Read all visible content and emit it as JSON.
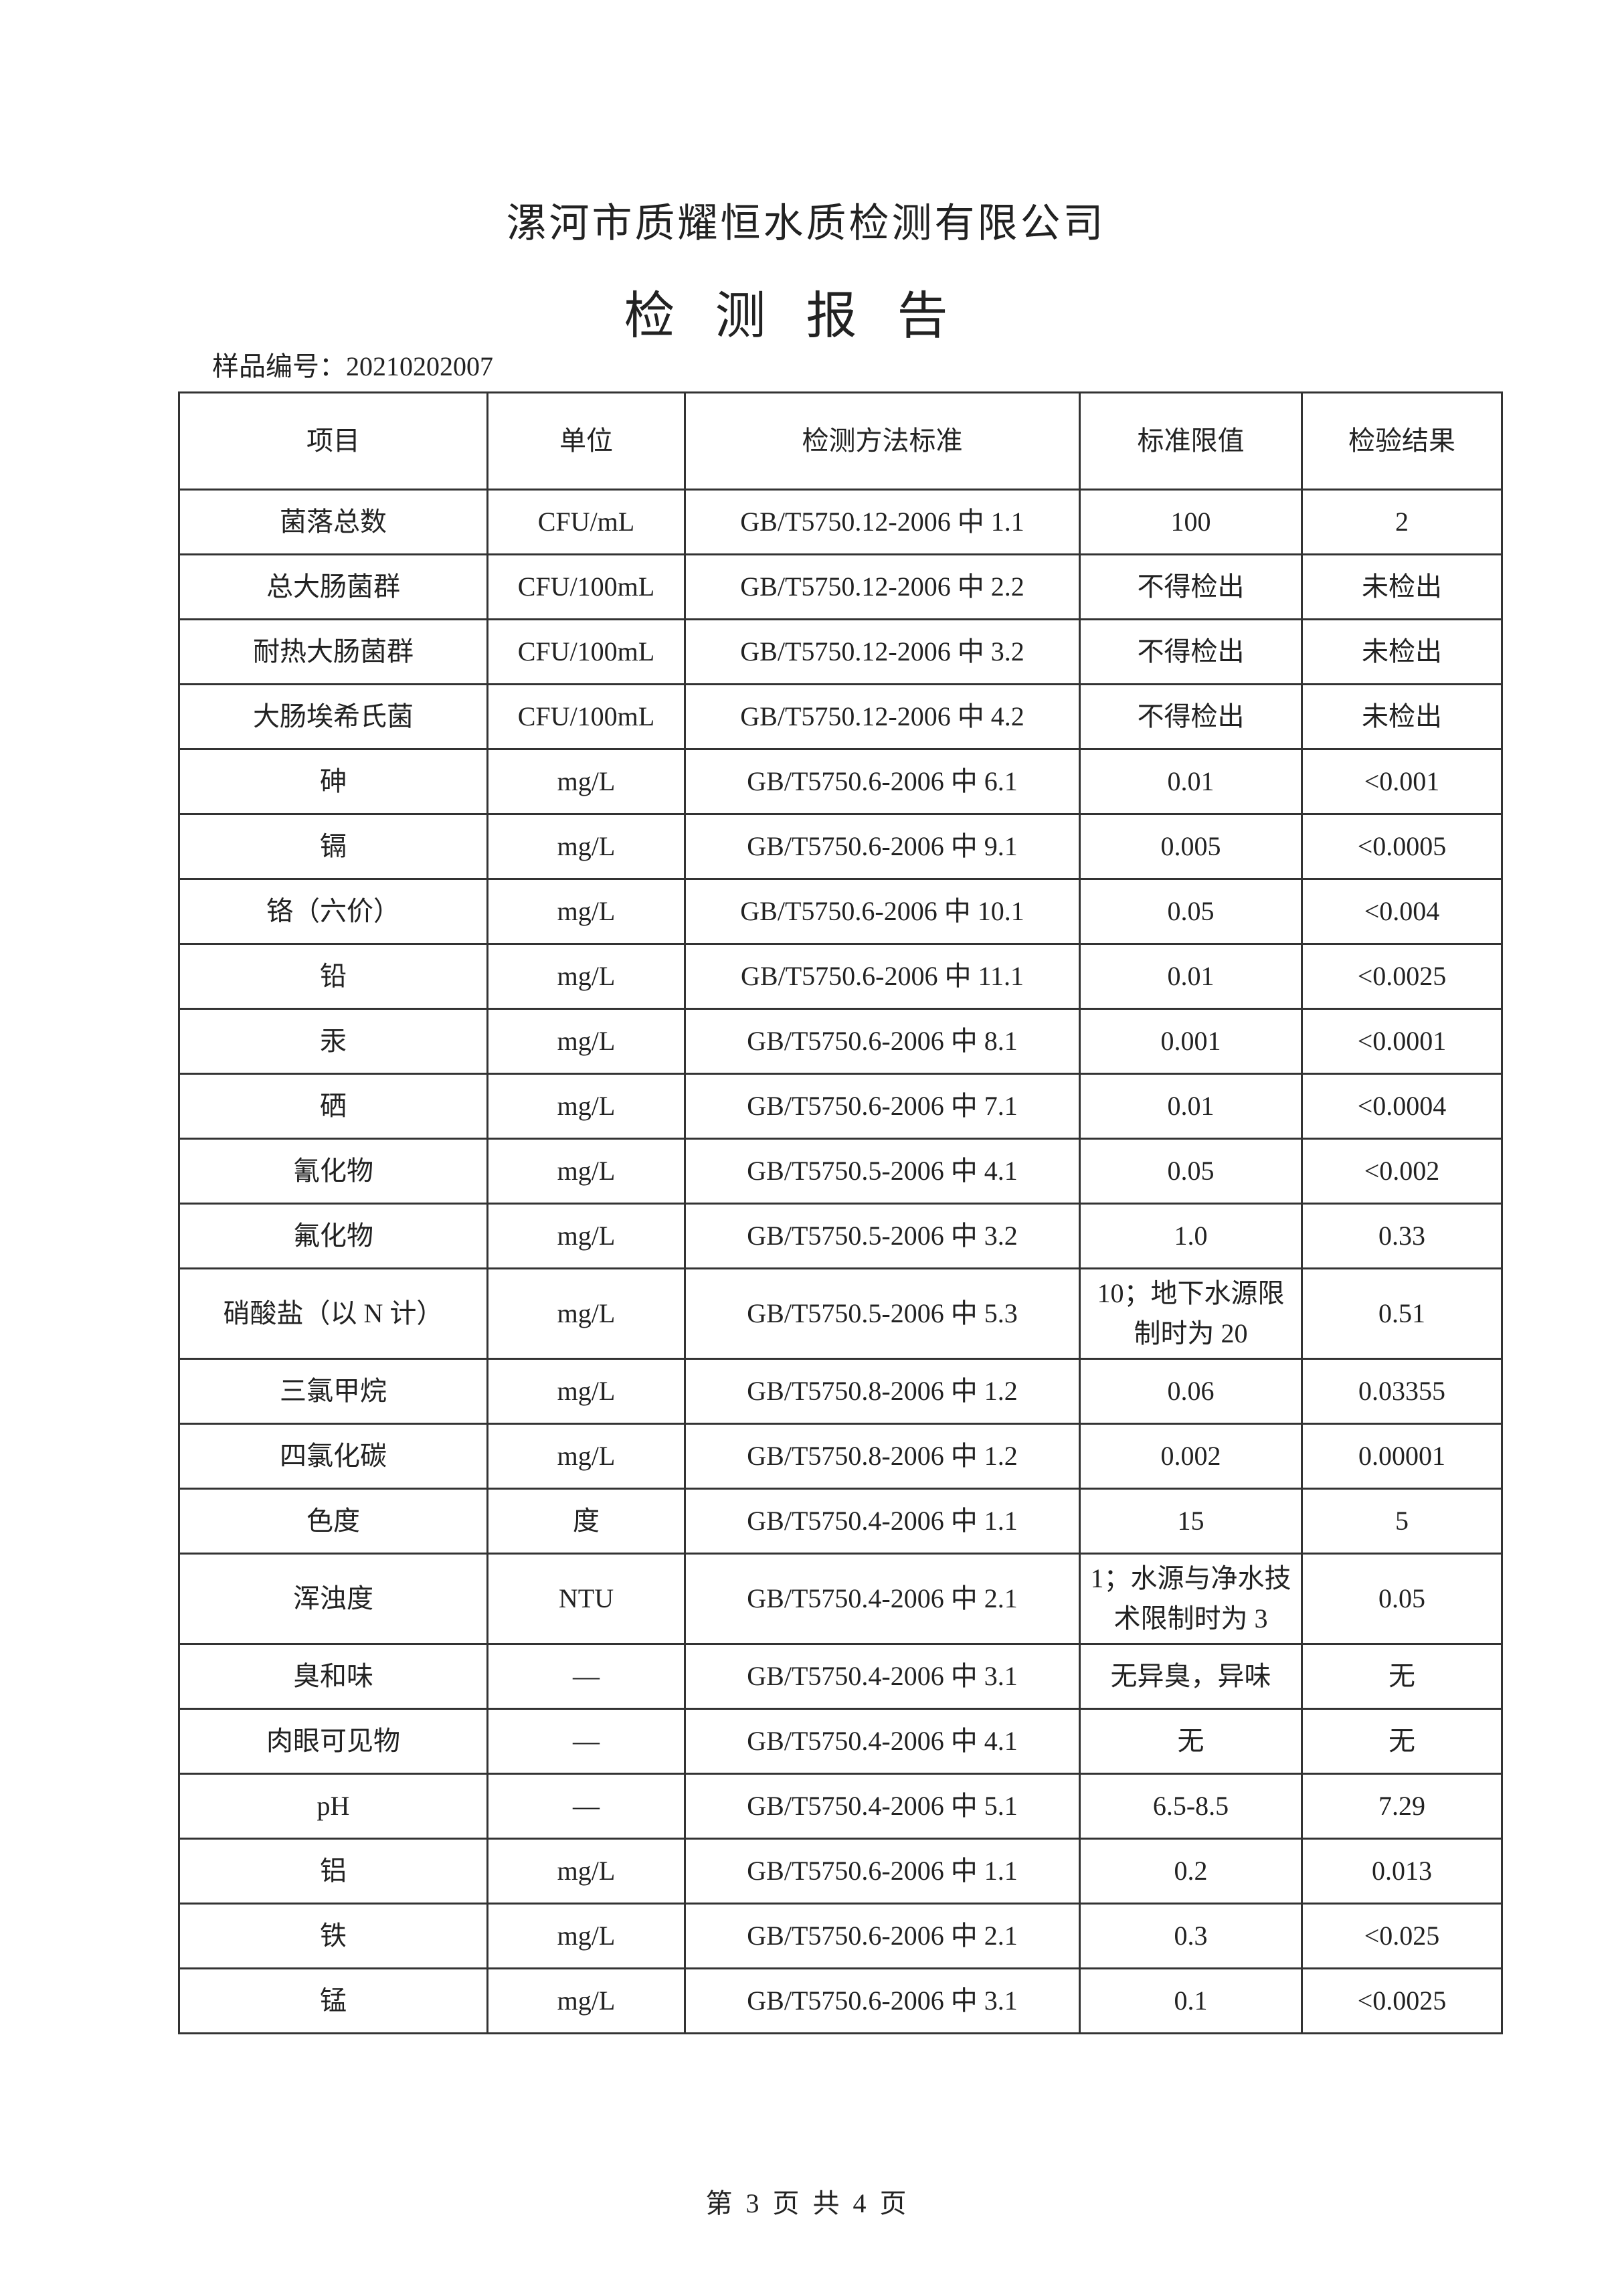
{
  "header": {
    "company": "漯河市质耀恒水质检测有限公司",
    "title": "检测报告",
    "sample_no": "样品编号：20210202007"
  },
  "table": {
    "columns": [
      "项目",
      "单位",
      "检测方法标准",
      "标准限值",
      "检验结果"
    ],
    "rows": [
      [
        "菌落总数",
        "CFU/mL",
        "GB/T5750.12-2006 中 1.1",
        "100",
        "2"
      ],
      [
        "总大肠菌群",
        "CFU/100mL",
        "GB/T5750.12-2006 中 2.2",
        "不得检出",
        "未检出"
      ],
      [
        "耐热大肠菌群",
        "CFU/100mL",
        "GB/T5750.12-2006 中 3.2",
        "不得检出",
        "未检出"
      ],
      [
        "大肠埃希氏菌",
        "CFU/100mL",
        "GB/T5750.12-2006 中 4.2",
        "不得检出",
        "未检出"
      ],
      [
        "砷",
        "mg/L",
        "GB/T5750.6-2006 中 6.1",
        "0.01",
        "<0.001"
      ],
      [
        "镉",
        "mg/L",
        "GB/T5750.6-2006 中 9.1",
        "0.005",
        "<0.0005"
      ],
      [
        "铬（六价）",
        "mg/L",
        "GB/T5750.6-2006 中 10.1",
        "0.05",
        "<0.004"
      ],
      [
        "铅",
        "mg/L",
        "GB/T5750.6-2006 中 11.1",
        "0.01",
        "<0.0025"
      ],
      [
        "汞",
        "mg/L",
        "GB/T5750.6-2006 中 8.1",
        "0.001",
        "<0.0001"
      ],
      [
        "硒",
        "mg/L",
        "GB/T5750.6-2006 中 7.1",
        "0.01",
        "<0.0004"
      ],
      [
        "氰化物",
        "mg/L",
        "GB/T5750.5-2006 中 4.1",
        "0.05",
        "<0.002"
      ],
      [
        "氟化物",
        "mg/L",
        "GB/T5750.5-2006 中 3.2",
        "1.0",
        "0.33"
      ],
      [
        "硝酸盐（以 N 计）",
        "mg/L",
        "GB/T5750.5-2006 中 5.3",
        "10；地下水源限制时为 20",
        "0.51"
      ],
      [
        "三氯甲烷",
        "mg/L",
        "GB/T5750.8-2006 中 1.2",
        "0.06",
        "0.03355"
      ],
      [
        "四氯化碳",
        "mg/L",
        "GB/T5750.8-2006 中 1.2",
        "0.002",
        "0.00001"
      ],
      [
        "色度",
        "度",
        "GB/T5750.4-2006 中 1.1",
        "15",
        "5"
      ],
      [
        "浑浊度",
        "NTU",
        "GB/T5750.4-2006 中 2.1",
        "1；水源与净水技术限制时为 3",
        "0.05"
      ],
      [
        "臭和味",
        "—",
        "GB/T5750.4-2006 中 3.1",
        "无异臭，异味",
        "无"
      ],
      [
        "肉眼可见物",
        "—",
        "GB/T5750.4-2006 中 4.1",
        "无",
        "无"
      ],
      [
        "pH",
        "—",
        "GB/T5750.4-2006 中 5.1",
        "6.5-8.5",
        "7.29"
      ],
      [
        "铝",
        "mg/L",
        "GB/T5750.6-2006 中 1.1",
        "0.2",
        "0.013"
      ],
      [
        "铁",
        "mg/L",
        "GB/T5750.6-2006 中 2.1",
        "0.3",
        "<0.025"
      ],
      [
        "锰",
        "mg/L",
        "GB/T5750.6-2006 中 3.1",
        "0.1",
        "<0.0025"
      ]
    ]
  },
  "footer": {
    "page": "第 3 页 共 4 页"
  }
}
